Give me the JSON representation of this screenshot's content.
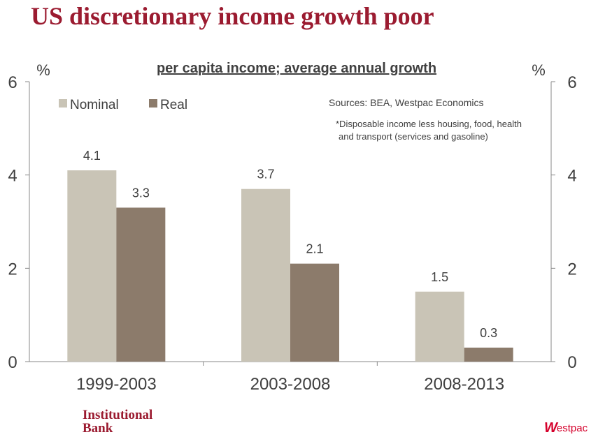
{
  "page": {
    "title": "US discretionary income growth poor",
    "logo_left": [
      "Institutional",
      "Bank"
    ],
    "logo_right": "Westpac"
  },
  "chart_data": {
    "type": "bar",
    "title": "per capita income; average annual growth",
    "ylabel_left": "%",
    "ylabel_right": "%",
    "categories": [
      "1999-2003",
      "2003-2008",
      "2008-2013"
    ],
    "series": [
      {
        "name": "Nominal",
        "values": [
          4.1,
          3.7,
          1.5
        ],
        "labels": [
          "4.1",
          "3.7",
          "1.5"
        ],
        "color": "#c9c4b6"
      },
      {
        "name": "Real",
        "values": [
          3.3,
          2.1,
          0.3
        ],
        "labels": [
          "3.3",
          "2.1",
          "0.3"
        ],
        "color": "#8c7b6b"
      }
    ],
    "ylim": [
      0,
      6
    ],
    "yticks": [
      0,
      2,
      4,
      6
    ],
    "grid": false,
    "legend_position": "top-left",
    "annotations": [
      "Sources: BEA, Westpac Economics",
      "*Disposable income less housing, food, health",
      "and transport (services and gasoline)"
    ]
  }
}
